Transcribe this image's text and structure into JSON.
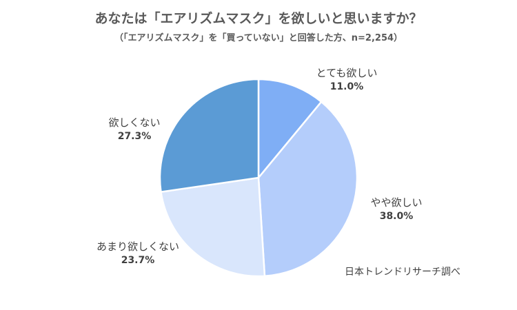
{
  "chart_data": {
    "type": "pie",
    "title": "あなたは「エアリズムマスク」を欲しいと思いますか？",
    "subtitle": "（「エアリズムマスク」を「買っていない」と回答した方、n=2,254）",
    "slices": [
      {
        "label": "とても欲しい",
        "value": 11.0,
        "value_label": "11.0%",
        "color": "#7FAEF5"
      },
      {
        "label": "やや欲しい",
        "value": 38.0,
        "value_label": "38.0%",
        "color": "#B4CDFB"
      },
      {
        "label": "あまり欲しくない",
        "value": 23.7,
        "value_label": "23.7%",
        "color": "#D9E6FC"
      },
      {
        "label": "欲しくない",
        "value": 27.3,
        "value_label": "27.3%",
        "color": "#5B9BD5"
      }
    ],
    "start_angle": "12 o'clock",
    "direction": "clockwise",
    "legend": "none",
    "source": "日本トレンドリサーチ調べ"
  }
}
